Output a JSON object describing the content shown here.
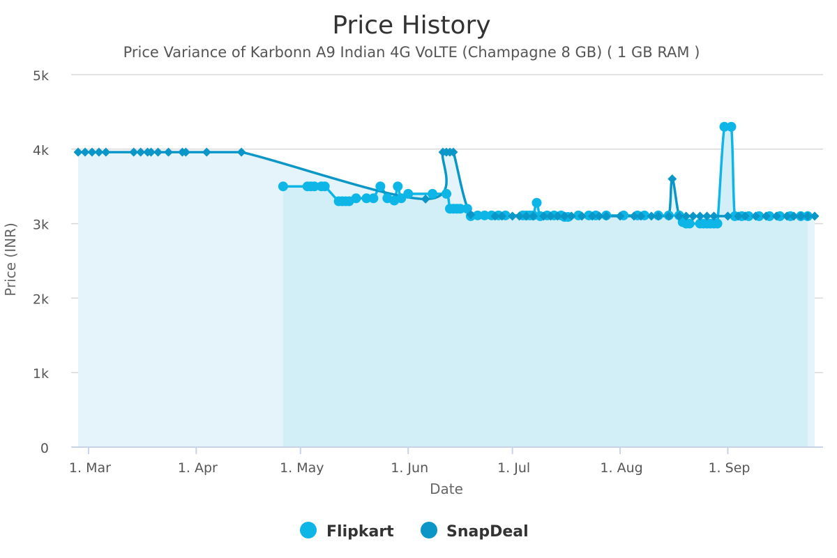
{
  "chart_data": {
    "type": "line",
    "title": "Price History",
    "subtitle": "Price Variance of Karbonn A9 Indian 4G VoLTE (Champagne 8 GB) ( 1 GB RAM )",
    "xlabel": "Date",
    "ylabel": "Price (INR)",
    "ylim": [
      0,
      5000
    ],
    "yticks": [
      {
        "value": 0,
        "label": "0"
      },
      {
        "value": 1000,
        "label": "1k"
      },
      {
        "value": 2000,
        "label": "2k"
      },
      {
        "value": 3000,
        "label": "3k"
      },
      {
        "value": 4000,
        "label": "4k"
      },
      {
        "value": 5000,
        "label": "5k"
      }
    ],
    "xlim": [
      "2018-02-26",
      "2018-09-26"
    ],
    "xticks": [
      {
        "value": "2018-03-01",
        "label": "1. Mar"
      },
      {
        "value": "2018-04-01",
        "label": "1. Apr"
      },
      {
        "value": "2018-05-01",
        "label": "1. May"
      },
      {
        "value": "2018-06-01",
        "label": "1. Jun"
      },
      {
        "value": "2018-07-01",
        "label": "1. Jul"
      },
      {
        "value": "2018-08-01",
        "label": "1. Aug"
      },
      {
        "value": "2018-09-01",
        "label": "1. Sep"
      }
    ],
    "grid": true,
    "legend_position": "bottom-center",
    "series": [
      {
        "name": "Flipkart",
        "color": "#0eb6e8",
        "fill": "#d2eef7",
        "marker": "circle",
        "points": [
          [
            "2018-04-26",
            3500
          ],
          [
            "2018-05-03",
            3500
          ],
          [
            "2018-05-04",
            3500
          ],
          [
            "2018-05-05",
            3500
          ],
          [
            "2018-05-07",
            3500
          ],
          [
            "2018-05-08",
            3500
          ],
          [
            "2018-05-12",
            3300
          ],
          [
            "2018-05-13",
            3300
          ],
          [
            "2018-05-14",
            3300
          ],
          [
            "2018-05-15",
            3300
          ],
          [
            "2018-05-17",
            3340
          ],
          [
            "2018-05-20",
            3340
          ],
          [
            "2018-05-22",
            3340
          ],
          [
            "2018-05-24",
            3500
          ],
          [
            "2018-05-26",
            3340
          ],
          [
            "2018-05-28",
            3310
          ],
          [
            "2018-05-29",
            3500
          ],
          [
            "2018-05-30",
            3340
          ],
          [
            "2018-06-01",
            3400
          ],
          [
            "2018-06-08",
            3400
          ],
          [
            "2018-06-12",
            3400
          ],
          [
            "2018-06-13",
            3200
          ],
          [
            "2018-06-14",
            3200
          ],
          [
            "2018-06-15",
            3200
          ],
          [
            "2018-06-16",
            3200
          ],
          [
            "2018-06-18",
            3200
          ],
          [
            "2018-06-19",
            3100
          ],
          [
            "2018-06-21",
            3110
          ],
          [
            "2018-06-23",
            3110
          ],
          [
            "2018-06-25",
            3110
          ],
          [
            "2018-06-27",
            3110
          ],
          [
            "2018-06-29",
            3110
          ],
          [
            "2018-07-04",
            3110
          ],
          [
            "2018-07-05",
            3110
          ],
          [
            "2018-07-06",
            3110
          ],
          [
            "2018-07-07",
            3110
          ],
          [
            "2018-07-08",
            3280
          ],
          [
            "2018-07-09",
            3100
          ],
          [
            "2018-07-11",
            3110
          ],
          [
            "2018-07-13",
            3110
          ],
          [
            "2018-07-15",
            3110
          ],
          [
            "2018-07-16",
            3090
          ],
          [
            "2018-07-17",
            3090
          ],
          [
            "2018-07-20",
            3110
          ],
          [
            "2018-07-23",
            3110
          ],
          [
            "2018-07-25",
            3110
          ],
          [
            "2018-07-28",
            3110
          ],
          [
            "2018-08-02",
            3110
          ],
          [
            "2018-08-06",
            3110
          ],
          [
            "2018-08-08",
            3110
          ],
          [
            "2018-08-12",
            3110
          ],
          [
            "2018-08-15",
            3110
          ],
          [
            "2018-08-18",
            3110
          ],
          [
            "2018-08-19",
            3020
          ],
          [
            "2018-08-20",
            3000
          ],
          [
            "2018-08-21",
            3000
          ],
          [
            "2018-08-24",
            3000
          ],
          [
            "2018-08-25",
            3000
          ],
          [
            "2018-08-26",
            3000
          ],
          [
            "2018-08-27",
            3000
          ],
          [
            "2018-08-28",
            3000
          ],
          [
            "2018-08-29",
            3000
          ],
          [
            "2018-08-31",
            4300
          ],
          [
            "2018-09-02",
            4300
          ],
          [
            "2018-09-03",
            3100
          ],
          [
            "2018-09-05",
            3100
          ],
          [
            "2018-09-07",
            3100
          ],
          [
            "2018-09-10",
            3100
          ],
          [
            "2018-09-13",
            3100
          ],
          [
            "2018-09-16",
            3100
          ],
          [
            "2018-09-19",
            3100
          ],
          [
            "2018-09-22",
            3100
          ],
          [
            "2018-09-24",
            3100
          ]
        ]
      },
      {
        "name": "SnapDeal",
        "color": "#0a97c8",
        "fill": "#e5f4fa",
        "marker": "diamond",
        "points": [
          [
            "2018-02-26",
            3960
          ],
          [
            "2018-02-28",
            3960
          ],
          [
            "2018-03-02",
            3960
          ],
          [
            "2018-03-04",
            3960
          ],
          [
            "2018-03-06",
            3960
          ],
          [
            "2018-03-14",
            3960
          ],
          [
            "2018-03-16",
            3960
          ],
          [
            "2018-03-18",
            3960
          ],
          [
            "2018-03-19",
            3960
          ],
          [
            "2018-03-21",
            3960
          ],
          [
            "2018-03-24",
            3960
          ],
          [
            "2018-03-28",
            3960
          ],
          [
            "2018-03-29",
            3960
          ],
          [
            "2018-04-04",
            3960
          ],
          [
            "2018-04-14",
            3960
          ],
          [
            "2018-06-06",
            3330
          ],
          [
            "2018-06-11",
            3960
          ],
          [
            "2018-06-12",
            3960
          ],
          [
            "2018-06-13",
            3960
          ],
          [
            "2018-06-14",
            3960
          ],
          [
            "2018-06-19",
            3120
          ],
          [
            "2018-06-26",
            3100
          ],
          [
            "2018-06-28",
            3100
          ],
          [
            "2018-07-01",
            3100
          ],
          [
            "2018-07-03",
            3100
          ],
          [
            "2018-07-05",
            3100
          ],
          [
            "2018-07-07",
            3100
          ],
          [
            "2018-07-10",
            3100
          ],
          [
            "2018-07-12",
            3100
          ],
          [
            "2018-07-14",
            3100
          ],
          [
            "2018-07-16",
            3100
          ],
          [
            "2018-07-18",
            3100
          ],
          [
            "2018-07-21",
            3100
          ],
          [
            "2018-07-24",
            3100
          ],
          [
            "2018-07-26",
            3100
          ],
          [
            "2018-07-28",
            3100
          ],
          [
            "2018-08-01",
            3100
          ],
          [
            "2018-08-05",
            3100
          ],
          [
            "2018-08-07",
            3100
          ],
          [
            "2018-08-10",
            3100
          ],
          [
            "2018-08-12",
            3100
          ],
          [
            "2018-08-15",
            3100
          ],
          [
            "2018-08-16",
            3600
          ],
          [
            "2018-08-18",
            3100
          ],
          [
            "2018-08-20",
            3100
          ],
          [
            "2018-08-22",
            3100
          ],
          [
            "2018-08-24",
            3100
          ],
          [
            "2018-08-26",
            3100
          ],
          [
            "2018-08-28",
            3100
          ],
          [
            "2018-09-01",
            3100
          ],
          [
            "2018-09-04",
            3100
          ],
          [
            "2018-09-06",
            3100
          ],
          [
            "2018-09-09",
            3100
          ],
          [
            "2018-09-12",
            3100
          ],
          [
            "2018-09-15",
            3100
          ],
          [
            "2018-09-18",
            3100
          ],
          [
            "2018-09-20",
            3100
          ],
          [
            "2018-09-22",
            3100
          ],
          [
            "2018-09-24",
            3100
          ],
          [
            "2018-09-26",
            3100
          ]
        ]
      }
    ]
  }
}
